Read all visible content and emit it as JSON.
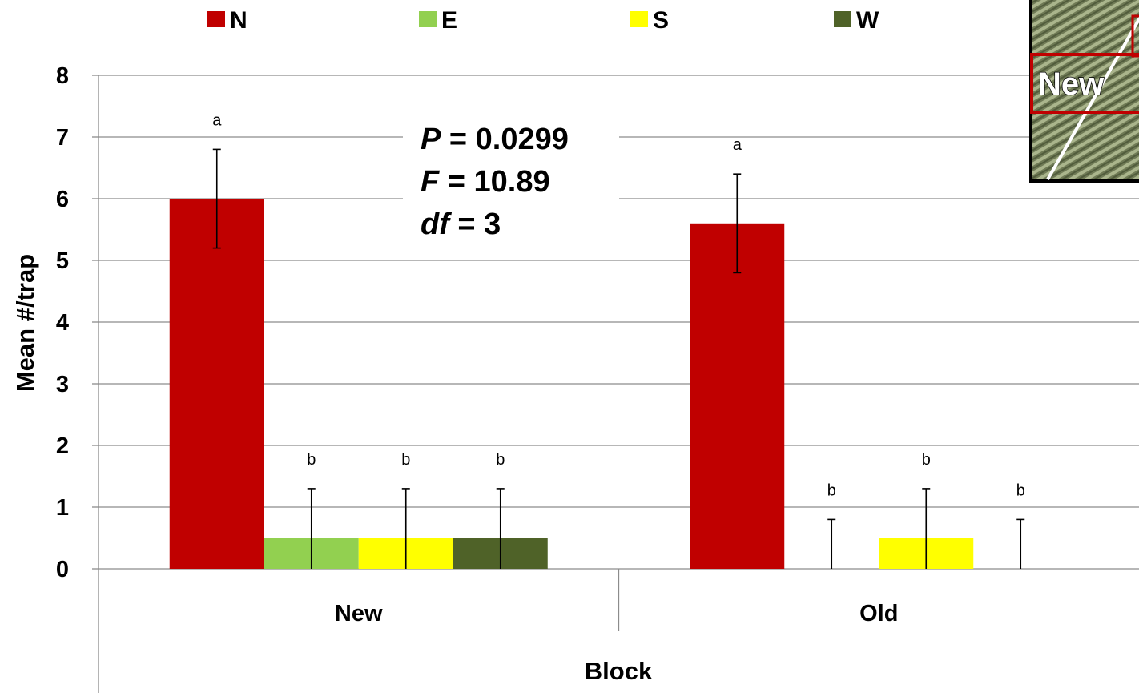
{
  "chart_data": {
    "type": "bar",
    "xlabel": "Block",
    "ylabel": "Mean #/trap",
    "ylim": [
      0,
      8
    ],
    "yticks": [
      0,
      1,
      2,
      3,
      4,
      5,
      6,
      7,
      8
    ],
    "grid": true,
    "legend_position": "top",
    "categories": [
      "New",
      "Old"
    ],
    "series": [
      {
        "name": "N",
        "color": "#c00000",
        "values": [
          6.0,
          5.6
        ],
        "error": [
          0.8,
          0.8
        ],
        "letters": [
          "a",
          "a"
        ]
      },
      {
        "name": "E",
        "color": "#92d050",
        "values": [
          0.5,
          0.0
        ],
        "error": [
          0.8,
          0.8
        ],
        "letters": [
          "b",
          "b"
        ]
      },
      {
        "name": "S",
        "color": "#ffff00",
        "values": [
          0.5,
          0.5
        ],
        "error": [
          0.8,
          0.8
        ],
        "letters": [
          "b",
          "b"
        ]
      },
      {
        "name": "W",
        "color": "#4f6228",
        "values": [
          0.5,
          0.0
        ],
        "error": [
          0.8,
          0.8
        ],
        "letters": [
          "b",
          "b"
        ]
      }
    ],
    "annotation": {
      "p_symbol": "P",
      "p_value": " = 0.0299",
      "f_symbol": "F",
      "f_value": " = 10.89",
      "df_symbol": "df",
      "df_value": " = 3"
    },
    "inset": {
      "label": "New",
      "description": "aerial map image"
    }
  }
}
